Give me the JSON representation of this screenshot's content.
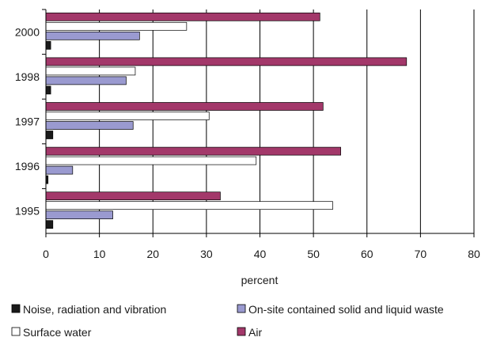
{
  "chart_data": {
    "type": "bar",
    "orientation": "horizontal",
    "categories": [
      "2000",
      "1998",
      "1997",
      "1996",
      "1995"
    ],
    "series": [
      {
        "name": "Air",
        "color": "#a3386a",
        "values": [
          51.2,
          67.4,
          51.8,
          55.1,
          32.6
        ]
      },
      {
        "name": "Surface water",
        "color": "#ffffff",
        "values": [
          26.3,
          16.7,
          30.5,
          39.3,
          53.6
        ]
      },
      {
        "name": "On-site contained solid and liquid waste",
        "color": "#9a9ad0",
        "values": [
          17.5,
          15.0,
          16.3,
          5.0,
          12.5
        ]
      },
      {
        "name": "Noise, radiation and vibration",
        "color": "#1a1a1a",
        "values": [
          0.9,
          0.9,
          1.3,
          0.4,
          1.3
        ]
      }
    ],
    "xlabel": "percent",
    "ylabel": "",
    "xlim": [
      0,
      80
    ],
    "xticks": [
      "0",
      "10",
      "20",
      "30",
      "40",
      "50",
      "60",
      "70",
      "80"
    ],
    "grid": "vertical",
    "legend": {
      "position": "bottom",
      "items": [
        {
          "label": "Noise, radiation and vibration",
          "color": "#1a1a1a"
        },
        {
          "label": "On-site contained solid and liquid waste",
          "color": "#9a9ad0"
        },
        {
          "label": "Surface water",
          "color": "#ffffff"
        },
        {
          "label": "Air",
          "color": "#a3386a"
        }
      ]
    }
  }
}
